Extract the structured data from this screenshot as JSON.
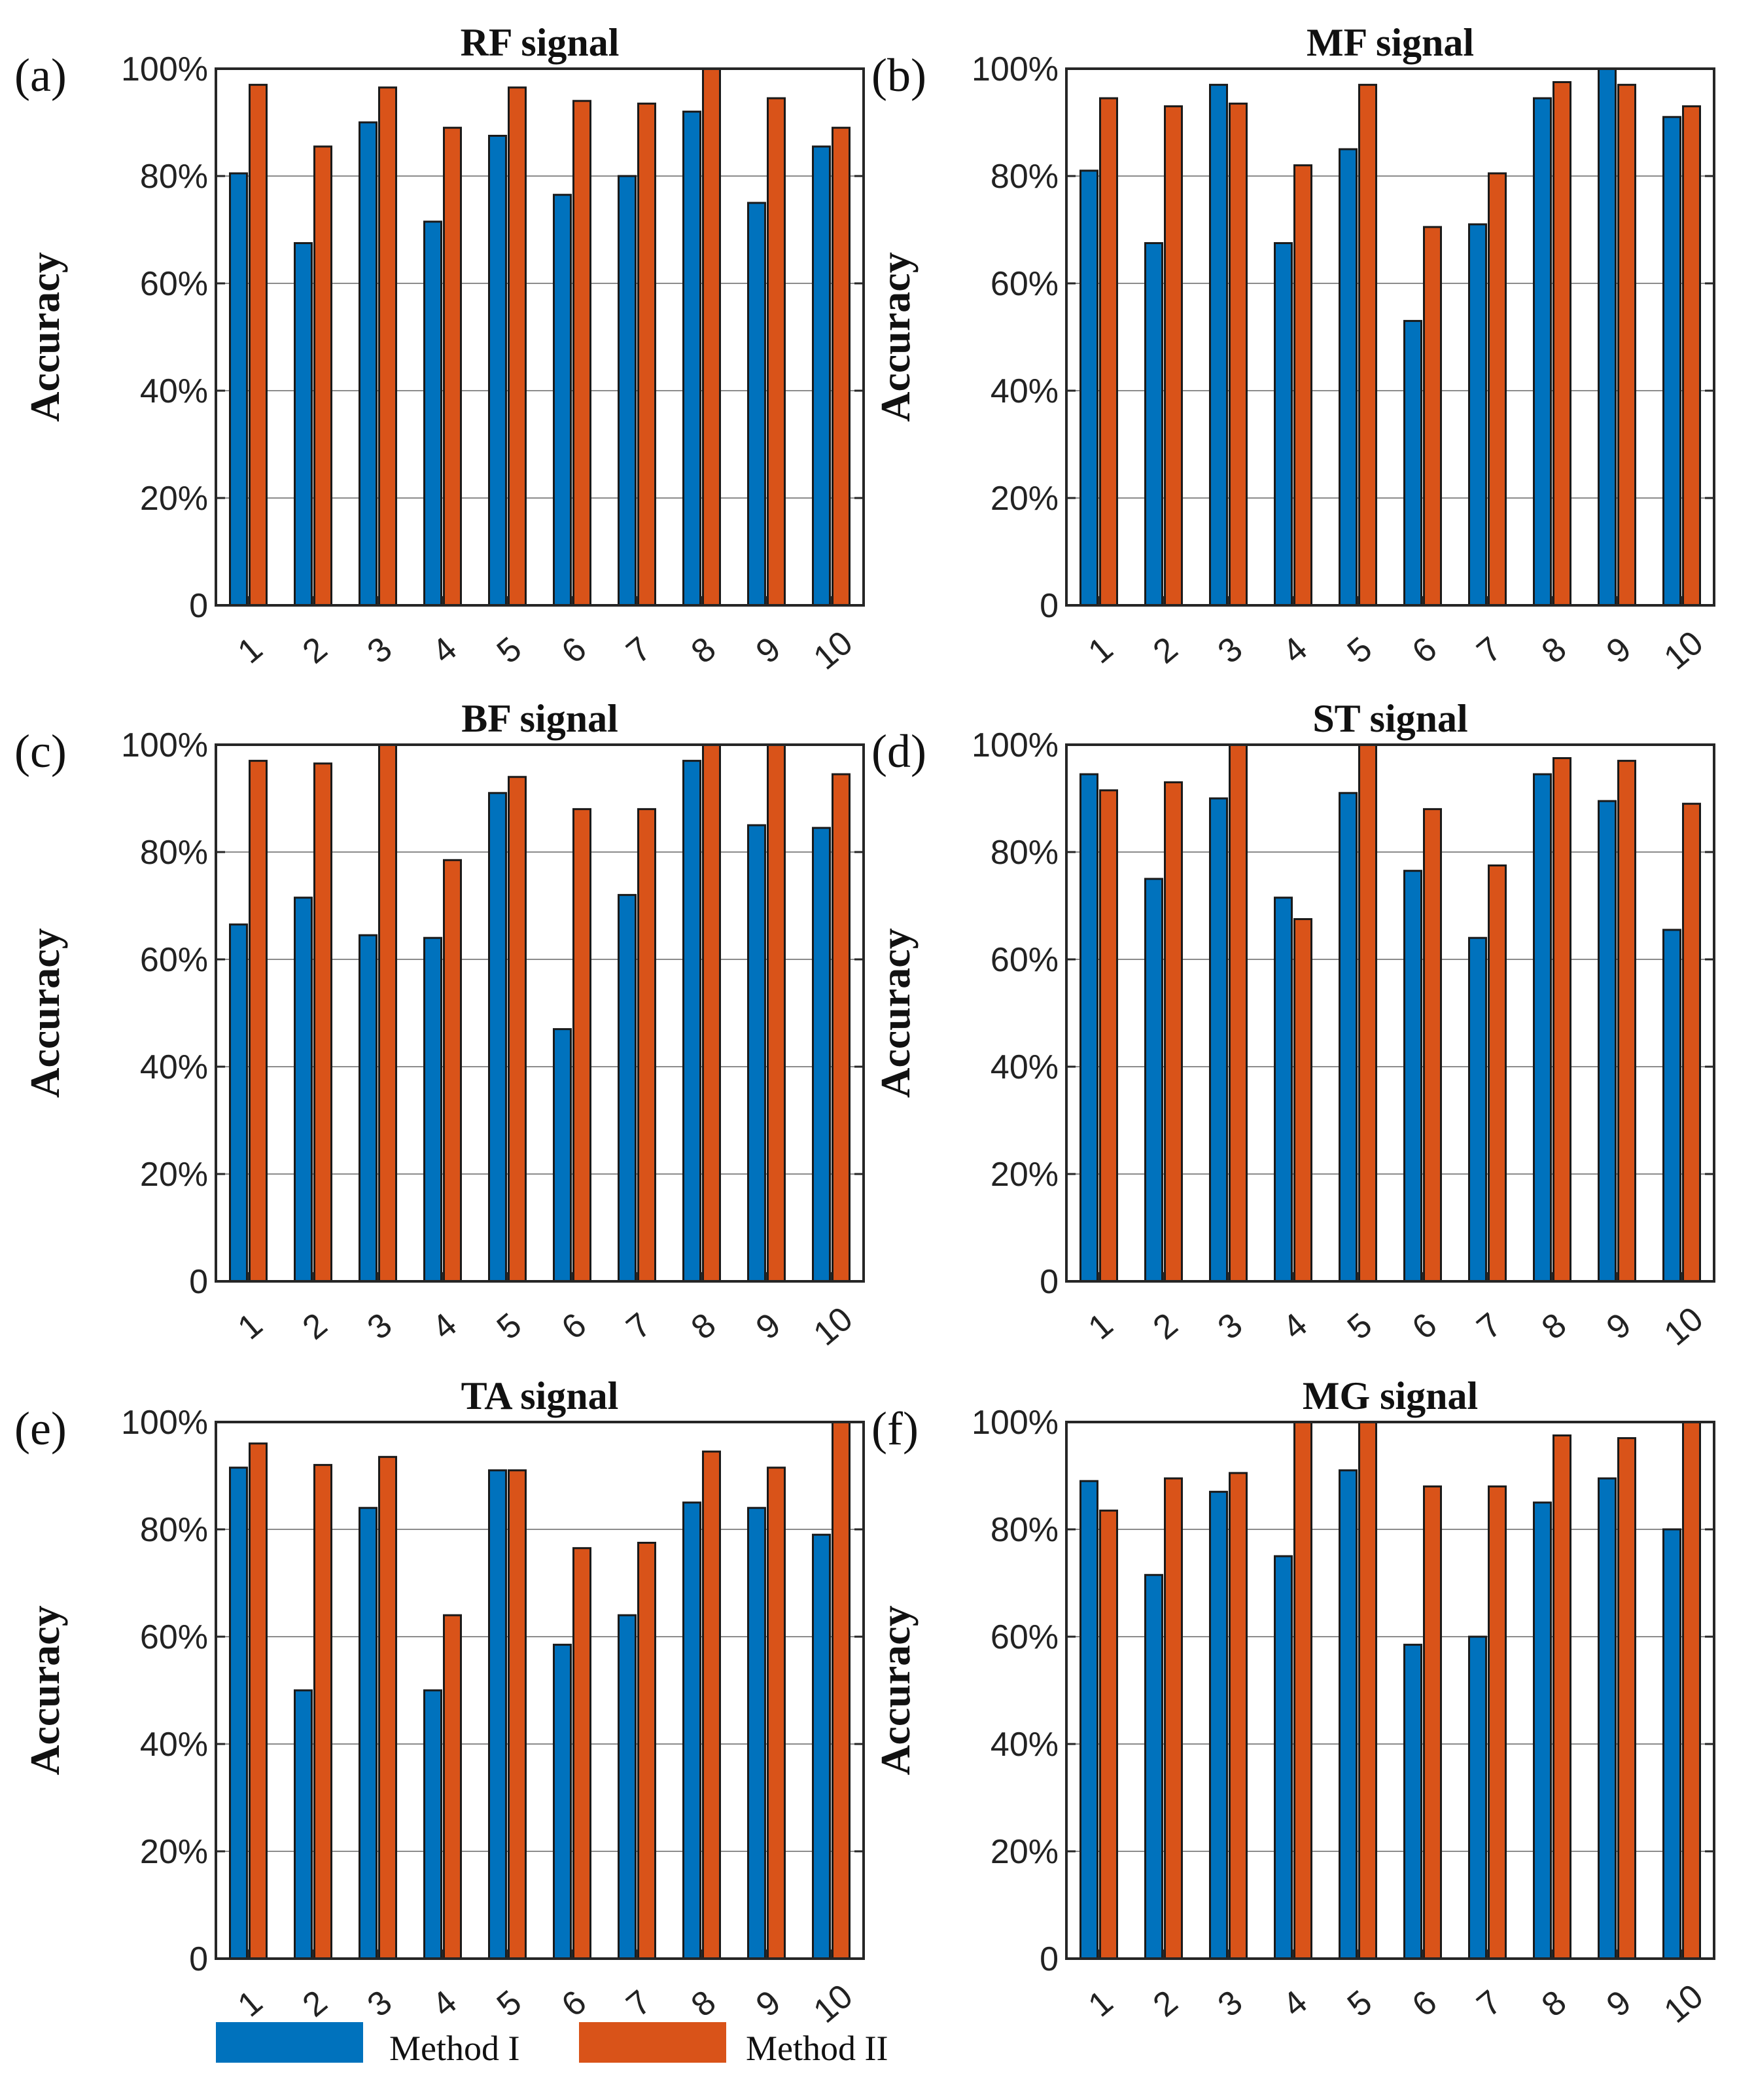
{
  "chart_data": [
    {
      "type": "bar",
      "panel": "(a)",
      "title": "RF signal",
      "ylabel": "Accuracy",
      "ylim": [
        0,
        100
      ],
      "yticks": [
        "0",
        "20%",
        "40%",
        "60%",
        "80%",
        "100%"
      ],
      "categories": [
        "1",
        "2",
        "3",
        "4",
        "5",
        "6",
        "7",
        "8",
        "9",
        "10"
      ],
      "series": [
        {
          "name": "Method I",
          "values": [
            80.5,
            67.5,
            90,
            71.5,
            87.5,
            76.5,
            80,
            92,
            75,
            85.5
          ]
        },
        {
          "name": "Method II",
          "values": [
            97,
            85.5,
            96.5,
            89,
            96.5,
            94,
            93.5,
            100,
            94.5,
            89
          ]
        }
      ]
    },
    {
      "type": "bar",
      "panel": "(b)",
      "title": "MF signal",
      "ylabel": "Accuracy",
      "ylim": [
        0,
        100
      ],
      "yticks": [
        "0",
        "20%",
        "40%",
        "60%",
        "80%",
        "100%"
      ],
      "categories": [
        "1",
        "2",
        "3",
        "4",
        "5",
        "6",
        "7",
        "8",
        "9",
        "10"
      ],
      "series": [
        {
          "name": "Method I",
          "values": [
            81,
            67.5,
            97,
            67.5,
            85,
            53,
            71,
            94.5,
            100,
            91
          ]
        },
        {
          "name": "Method II",
          "values": [
            94.5,
            93,
            93.5,
            82,
            97,
            70.5,
            80.5,
            97.5,
            97,
            93
          ]
        }
      ]
    },
    {
      "type": "bar",
      "panel": "(c)",
      "title": "BF signal",
      "ylabel": "Accuracy",
      "ylim": [
        0,
        100
      ],
      "yticks": [
        "0",
        "20%",
        "40%",
        "60%",
        "80%",
        "100%"
      ],
      "categories": [
        "1",
        "2",
        "3",
        "4",
        "5",
        "6",
        "7",
        "8",
        "9",
        "10"
      ],
      "series": [
        {
          "name": "Method I",
          "values": [
            66.5,
            71.5,
            64.5,
            64,
            91,
            47,
            72,
            97,
            85,
            84.5
          ]
        },
        {
          "name": "Method II",
          "values": [
            97,
            96.5,
            100,
            78.5,
            94,
            88,
            88,
            100,
            100,
            94.5
          ]
        }
      ]
    },
    {
      "type": "bar",
      "panel": "(d)",
      "title": "ST signal",
      "ylabel": "Accuracy",
      "ylim": [
        0,
        100
      ],
      "yticks": [
        "0",
        "20%",
        "40%",
        "60%",
        "80%",
        "100%"
      ],
      "categories": [
        "1",
        "2",
        "3",
        "4",
        "5",
        "6",
        "7",
        "8",
        "9",
        "10"
      ],
      "series": [
        {
          "name": "Method I",
          "values": [
            94.5,
            75,
            90,
            71.5,
            91,
            76.5,
            64,
            94.5,
            89.5,
            65.5
          ]
        },
        {
          "name": "Method II",
          "values": [
            91.5,
            93,
            100,
            67.5,
            100,
            88,
            77.5,
            97.5,
            97,
            89
          ]
        }
      ]
    },
    {
      "type": "bar",
      "panel": "(e)",
      "title": "TA signal",
      "ylabel": "Accuracy",
      "ylim": [
        0,
        100
      ],
      "yticks": [
        "0",
        "20%",
        "40%",
        "60%",
        "80%",
        "100%"
      ],
      "categories": [
        "1",
        "2",
        "3",
        "4",
        "5",
        "6",
        "7",
        "8",
        "9",
        "10"
      ],
      "series": [
        {
          "name": "Method I",
          "values": [
            91.5,
            50,
            84,
            50,
            91,
            58.5,
            64,
            85,
            84,
            79
          ]
        },
        {
          "name": "Method II",
          "values": [
            96,
            92,
            93.5,
            64,
            91,
            76.5,
            77.5,
            94.5,
            91.5,
            100
          ]
        }
      ]
    },
    {
      "type": "bar",
      "panel": "(f)",
      "title": "MG signal",
      "ylabel": "Accuracy",
      "ylim": [
        0,
        100
      ],
      "yticks": [
        "0",
        "20%",
        "40%",
        "60%",
        "80%",
        "100%"
      ],
      "categories": [
        "1",
        "2",
        "3",
        "4",
        "5",
        "6",
        "7",
        "8",
        "9",
        "10"
      ],
      "series": [
        {
          "name": "Method I",
          "values": [
            89,
            71.5,
            87,
            75,
            91,
            58.5,
            60,
            85,
            89.5,
            80
          ]
        },
        {
          "name": "Method II",
          "values": [
            83.5,
            89.5,
            90.5,
            100,
            100,
            88,
            88,
            97.5,
            97,
            100
          ]
        }
      ]
    }
  ],
  "legend": [
    {
      "name": "Method I",
      "color": "#0072BD"
    },
    {
      "name": "Method II",
      "color": "#D95319"
    }
  ],
  "colors": {
    "method1": "#0072BD",
    "method2": "#D95319",
    "axis": "#262626",
    "grid": "#8c8c8c"
  }
}
